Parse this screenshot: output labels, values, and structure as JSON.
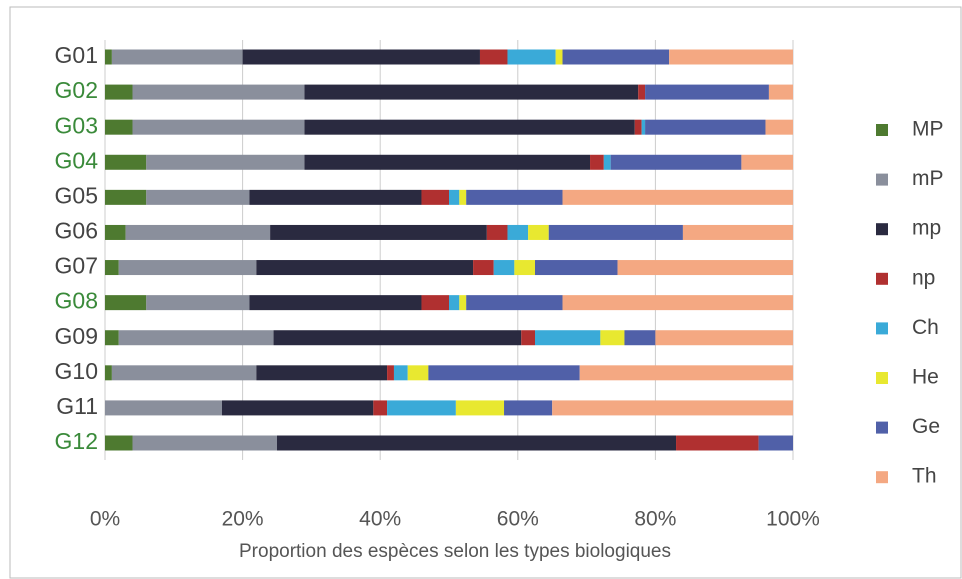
{
  "chart_data": {
    "type": "stacked_barh",
    "x_label": "Proportion des espèces selon les types biologiques",
    "categories": [
      "G01",
      "G02",
      "G03",
      "G04",
      "G05",
      "G06",
      "G07",
      "G08",
      "G09",
      "G10",
      "G11",
      "G12"
    ],
    "category_colors": [
      "#444",
      "#3a8a3a",
      "#3a8a3a",
      "#3a8a3a",
      "#444",
      "#444",
      "#444",
      "#3a8a3a",
      "#444",
      "#444",
      "#444",
      "#3a8a3a"
    ],
    "series": [
      {
        "name": "MP",
        "color": "#4e7a30",
        "values": [
          1,
          4,
          4,
          6,
          6,
          3,
          2,
          6,
          2,
          1,
          0,
          4
        ]
      },
      {
        "name": "mP",
        "color": "#8a8f9c",
        "values": [
          19,
          25,
          25,
          23,
          15,
          21,
          20,
          15,
          22.5,
          21,
          17,
          21
        ]
      },
      {
        "name": "mp",
        "color": "#2a2a40",
        "values": [
          34.5,
          48.5,
          48,
          41.5,
          25,
          31.5,
          31.5,
          25,
          36,
          19,
          22,
          58
        ]
      },
      {
        "name": "np",
        "color": "#b03030",
        "values": [
          4,
          1,
          1,
          2,
          4,
          3,
          3,
          4,
          2,
          1,
          2,
          12
        ]
      },
      {
        "name": "Ch",
        "color": "#3aaad8",
        "values": [
          7,
          0,
          0.5,
          1,
          1.5,
          3,
          3,
          1.5,
          9.5,
          2,
          10,
          0
        ]
      },
      {
        "name": "He",
        "color": "#e8e830",
        "values": [
          1,
          0,
          0,
          0,
          1,
          3,
          3,
          1,
          3.5,
          3,
          7,
          0
        ]
      },
      {
        "name": "Ge",
        "color": "#5060a8",
        "values": [
          15.5,
          18,
          17.5,
          19,
          14,
          19.5,
          12,
          14,
          4.5,
          22,
          7,
          5
        ]
      },
      {
        "name": "Th",
        "color": "#f4a882",
        "values": [
          18,
          3.5,
          4,
          7.5,
          33.5,
          16,
          25.5,
          33.5,
          20,
          31,
          35,
          0
        ]
      }
    ],
    "xlim": [
      0,
      100
    ],
    "xticks": [
      {
        "value": 0,
        "label": "0%"
      },
      {
        "value": 20,
        "label": "20%"
      },
      {
        "value": 40,
        "label": "40%"
      },
      {
        "value": 60,
        "label": "60%"
      },
      {
        "value": 80,
        "label": "80%"
      },
      {
        "value": 100,
        "label": "100%"
      }
    ],
    "grid": true,
    "legend": "right"
  }
}
